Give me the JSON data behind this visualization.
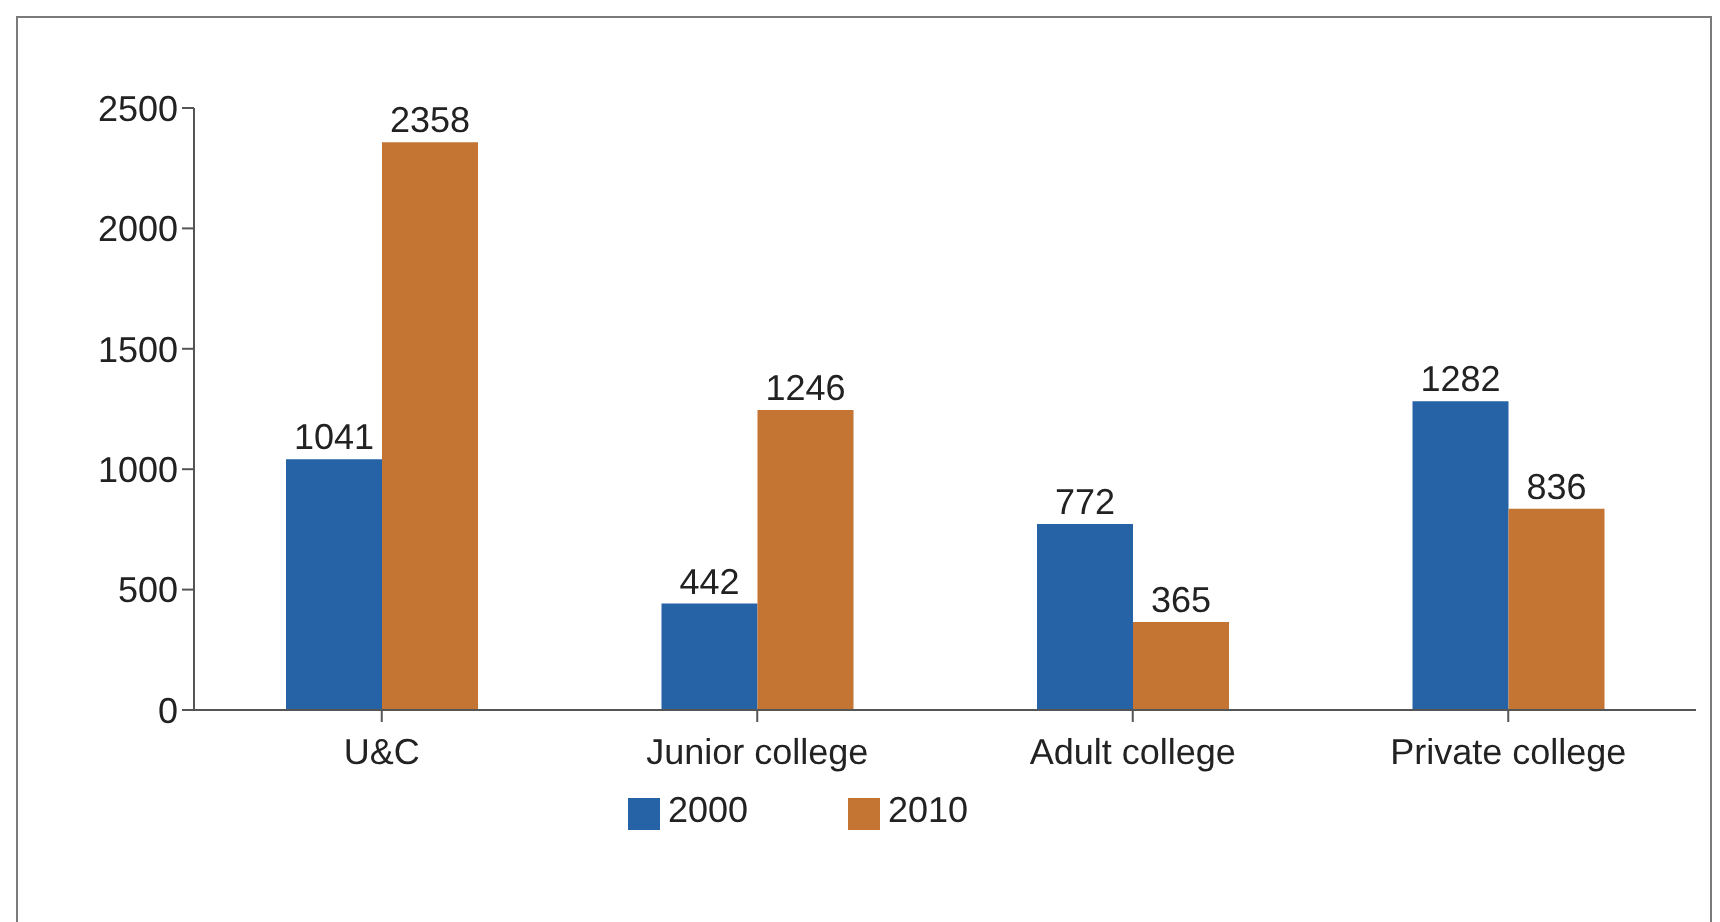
{
  "chart_data": {
    "type": "bar",
    "categories": [
      "U&C",
      "Junior college",
      "Adult college",
      "Private college"
    ],
    "series": [
      {
        "name": "2000",
        "color": "#2563a6",
        "values": [
          1041,
          442,
          772,
          1282
        ]
      },
      {
        "name": "2010",
        "color": "#c47533",
        "values": [
          2358,
          1246,
          365,
          836
        ]
      }
    ],
    "ylim": [
      0,
      2500
    ],
    "yticks": [
      0,
      500,
      1000,
      1500,
      2000,
      2500
    ],
    "grid": false,
    "legend": "bottom",
    "data_labels": true
  }
}
